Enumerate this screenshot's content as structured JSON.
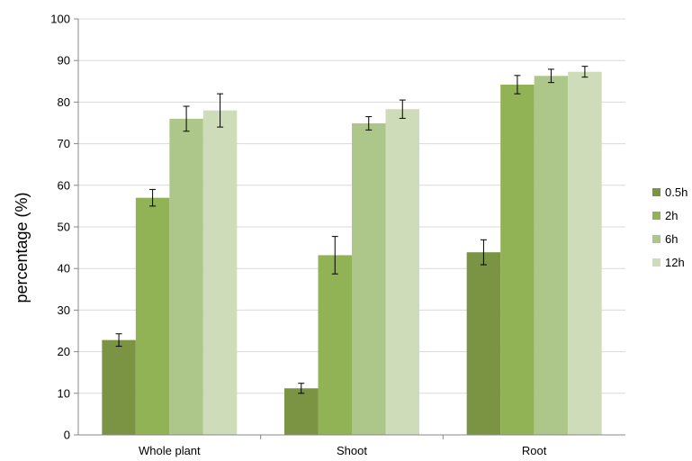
{
  "chart_data": {
    "type": "bar",
    "title": "",
    "xlabel": "",
    "ylabel": "percentage (%)",
    "ylim": [
      0,
      100
    ],
    "yticks": [
      0,
      10,
      20,
      30,
      40,
      50,
      60,
      70,
      80,
      90,
      100
    ],
    "grid": true,
    "legend_position": "right",
    "categories": [
      "Whole plant",
      "Shoot",
      "Root"
    ],
    "series": [
      {
        "name": "0.5h",
        "color": "#7a9444",
        "values": [
          22.8,
          11.2,
          43.9
        ],
        "errors": [
          1.5,
          1.2,
          3.0
        ]
      },
      {
        "name": "2h",
        "color": "#92b256",
        "values": [
          57.0,
          43.2,
          84.2
        ],
        "errors": [
          2.0,
          4.5,
          2.2
        ]
      },
      {
        "name": "6h",
        "color": "#adc78a",
        "values": [
          76.0,
          74.9,
          86.3
        ],
        "errors": [
          3.0,
          1.6,
          1.6
        ]
      },
      {
        "name": "12h",
        "color": "#cfdcba",
        "values": [
          78.0,
          78.3,
          87.3
        ],
        "errors": [
          4.0,
          2.2,
          1.3
        ]
      }
    ]
  }
}
